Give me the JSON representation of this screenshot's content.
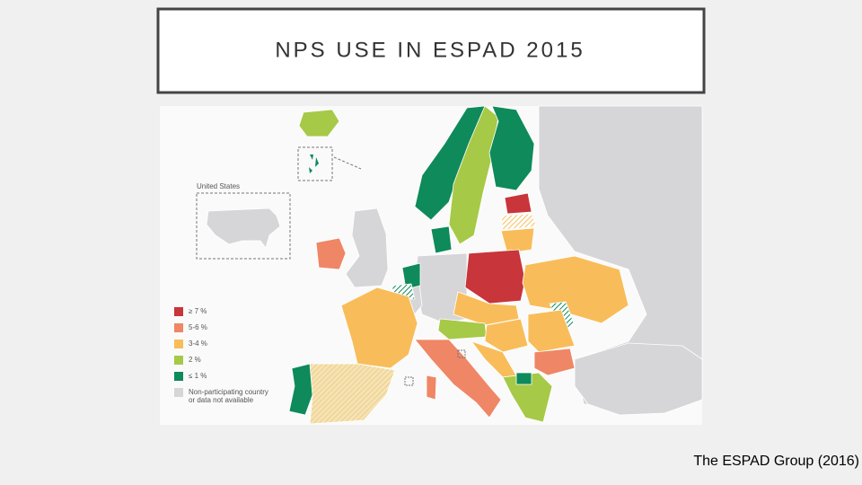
{
  "title": "NPS USE IN ESPAD 2015",
  "map": {
    "inset_label": "United States",
    "legend": [
      {
        "color": "#c8353a",
        "lines": [
          "≥ 7 %"
        ]
      },
      {
        "color": "#ef8666",
        "lines": [
          "5-6 %"
        ]
      },
      {
        "color": "#f8bd5a",
        "lines": [
          "3-4 %"
        ]
      },
      {
        "color": "#a6c947",
        "lines": [
          "2 %"
        ]
      },
      {
        "color": "#0f8a5a",
        "lines": [
          "≤ 1 %"
        ]
      },
      {
        "color": "#d6d6d8",
        "lines": [
          "Non-participating country",
          "or data not available"
        ]
      }
    ]
  },
  "caption": "The ESPAD Group (2016)"
}
